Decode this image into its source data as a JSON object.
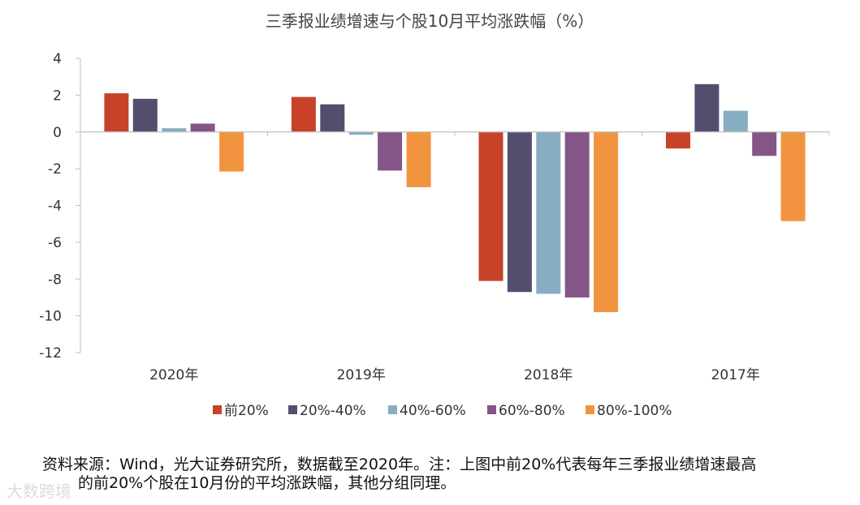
{
  "chart_data": {
    "type": "bar",
    "title": "三季报业绩增速与个股10月平均涨跌幅（%）",
    "xlabel": "",
    "ylabel": "",
    "ylim": [
      -12,
      4
    ],
    "yticks": [
      "4",
      "2",
      "0",
      "-2",
      "-4",
      "-6",
      "-8",
      "-10",
      "-12"
    ],
    "ytick_values": [
      4,
      2,
      0,
      -2,
      -4,
      -6,
      -8,
      -10,
      -12
    ],
    "categories": [
      "2020年",
      "2019年",
      "2018年",
      "2017年"
    ],
    "series": [
      {
        "name": "前20%",
        "color": "#c8422a",
        "values": [
          2.1,
          1.9,
          -8.1,
          -0.9
        ]
      },
      {
        "name": "20%-40%",
        "color": "#534d6e",
        "values": [
          1.8,
          1.5,
          -8.7,
          2.6
        ]
      },
      {
        "name": "40%-60%",
        "color": "#86adc1",
        "values": [
          0.2,
          -0.15,
          -8.8,
          1.15
        ]
      },
      {
        "name": "60%-80%",
        "color": "#845586",
        "values": [
          0.45,
          -2.1,
          -9.0,
          -1.3
        ]
      },
      {
        "name": "80%-100%",
        "color": "#f2943f",
        "values": [
          -2.15,
          -3.0,
          -9.8,
          -4.85
        ]
      }
    ],
    "legend_position": "bottom"
  },
  "footer": {
    "source_line1": "资料来源：Wind，光大证券研究所，数据截至2020年。注：上图中前20%代表每年三季报业绩增速最高",
    "source_line2": "的前20%个股在10月份的平均涨跌幅，其他分组同理。",
    "watermark": "大数跨境"
  },
  "colors": {
    "axis": "#bfbfbf",
    "text": "#333333"
  }
}
